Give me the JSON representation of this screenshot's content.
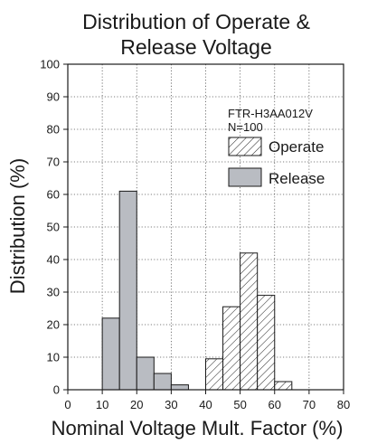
{
  "chart_data": {
    "type": "bar",
    "title": [
      "Distribution of Operate &",
      "Release Voltage"
    ],
    "xlabel": "Nominal Voltage Mult. Factor (%)",
    "ylabel": "Distribution (%)",
    "xlim": [
      0,
      80
    ],
    "ylim": [
      0,
      100
    ],
    "xticks": [
      0,
      10,
      20,
      30,
      40,
      50,
      60,
      70,
      80
    ],
    "yticks": [
      0,
      10,
      20,
      30,
      40,
      50,
      60,
      70,
      80,
      90,
      100
    ],
    "grid": true,
    "annotations": [
      "FTR-H3AA012V",
      "N=100"
    ],
    "legend_position": "top-right",
    "bin_width": 5,
    "series": [
      {
        "name": "Operate",
        "style": "hatched",
        "color": "#ffffff",
        "bins": [
          {
            "x0": 40,
            "x1": 45,
            "value": 9.5
          },
          {
            "x0": 45,
            "x1": 50,
            "value": 25.5
          },
          {
            "x0": 50,
            "x1": 55,
            "value": 42
          },
          {
            "x0": 55,
            "x1": 60,
            "value": 29
          },
          {
            "x0": 60,
            "x1": 65,
            "value": 2.5
          }
        ]
      },
      {
        "name": "Release",
        "style": "solid",
        "color": "#b9bcc2",
        "bins": [
          {
            "x0": 10,
            "x1": 15,
            "value": 22
          },
          {
            "x0": 15,
            "x1": 20,
            "value": 61
          },
          {
            "x0": 20,
            "x1": 25,
            "value": 10
          },
          {
            "x0": 25,
            "x1": 30,
            "value": 5
          },
          {
            "x0": 30,
            "x1": 35,
            "value": 1.5
          }
        ]
      }
    ]
  }
}
